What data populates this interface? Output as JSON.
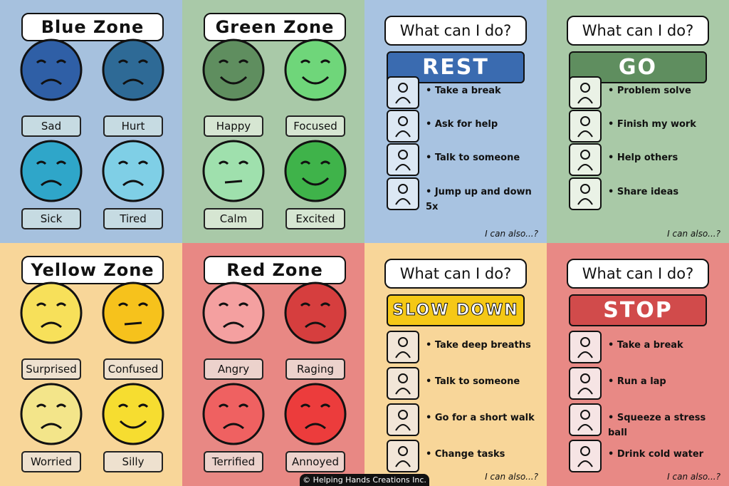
{
  "panels": [
    {
      "title": "Blue Zone",
      "emotions": [
        "Sad",
        "Hurt",
        "Sick",
        "Tired"
      ]
    },
    {
      "title": "Green Zone",
      "emotions": [
        "Happy",
        "Focused",
        "Calm",
        "Excited"
      ]
    },
    {
      "heading": "What can I do?",
      "banner": "REST",
      "actions": [
        "Take a break",
        "Ask for help",
        "Talk to someone",
        "Jump up and down 5x"
      ],
      "footer": "I can also...?"
    },
    {
      "heading": "What can I do?",
      "banner": "GO",
      "actions": [
        "Problem solve",
        "Finish my work",
        "Help others",
        "Share ideas"
      ],
      "footer": "I can also...?"
    },
    {
      "title": "Yellow Zone",
      "emotions": [
        "Surprised",
        "Confused",
        "Worried",
        "Silly"
      ]
    },
    {
      "title": "Red Zone",
      "emotions": [
        "Angry",
        "Raging",
        "Terrified",
        "Annoyed"
      ]
    },
    {
      "heading": "What can I do?",
      "banner": "SLOW DOWN",
      "actions": [
        "Take deep breaths",
        "Talk to someone",
        "Go for a short walk",
        "Change tasks"
      ],
      "footer": "I can also...?"
    },
    {
      "heading": "What can I do?",
      "banner": "STOP",
      "actions": [
        "Take a break",
        "Run a lap",
        "Squeeze a stress ball",
        "Drink cold water"
      ],
      "footer": "I can also...?"
    }
  ],
  "credit": "© Helping Hands Creations Inc."
}
